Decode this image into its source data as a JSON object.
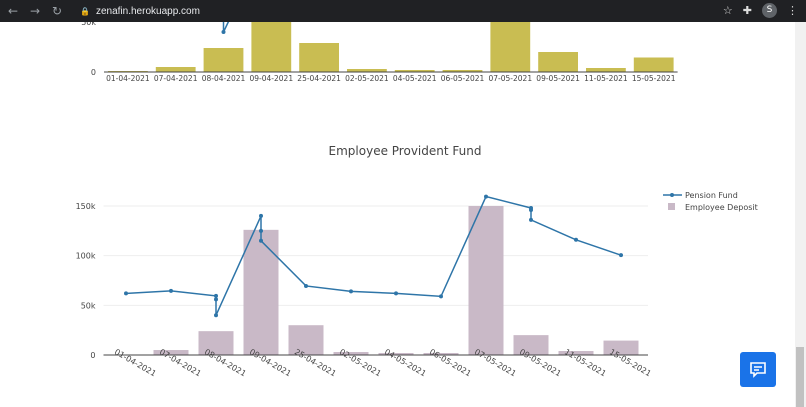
{
  "browser": {
    "url": "zenafin.herokuapp.com",
    "profile": "S"
  },
  "chart_data": [
    {
      "type": "bar+line",
      "title": "",
      "categories": [
        "01-04-2021",
        "07-04-2021",
        "08-04-2021",
        "09-04-2021",
        "25-04-2021",
        "02-05-2021",
        "04-05-2021",
        "06-05-2021",
        "07-05-2021",
        "09-05-2021",
        "11-05-2021",
        "15-05-2021"
      ],
      "bar_values": [
        1000,
        5000,
        24000,
        126000,
        29000,
        3000,
        2000,
        2000,
        150000,
        20000,
        4000,
        14500
      ],
      "yticks": [
        {
          "v": 0,
          "label": "0"
        },
        {
          "v": 50000,
          "label": "50k"
        }
      ],
      "bar_color": "#c9bd52"
    },
    {
      "type": "bar+line",
      "title": "Employee Provident Fund",
      "categories": [
        "01-04-2021",
        "07-04-2021",
        "08-04-2021",
        "09-04-2021",
        "25-04-2021",
        "02-05-2021",
        "04-05-2021",
        "06-05-2021",
        "07-05-2021",
        "09-05-2021",
        "11-05-2021",
        "15-05-2021"
      ],
      "series": [
        {
          "name": "Pension Fund",
          "type": "line",
          "color": "#2e75a8",
          "points": [
            [
              0,
              62000
            ],
            [
              1,
              64500
            ],
            [
              2,
              59500
            ],
            [
              2,
              56000
            ],
            [
              2,
              40000
            ],
            [
              3,
              140000
            ],
            [
              3,
              125000
            ],
            [
              3,
              115000
            ],
            [
              4,
              69500
            ],
            [
              5,
              64000
            ],
            [
              6,
              62000
            ],
            [
              7,
              59000
            ],
            [
              8,
              159500
            ],
            [
              9,
              148000
            ],
            [
              9,
              146000
            ],
            [
              9,
              136000
            ],
            [
              10,
              116000
            ],
            [
              11,
              100500
            ]
          ]
        },
        {
          "name": "Employee Deposit",
          "type": "bar",
          "color": "#c9b9c7",
          "values": [
            500,
            5000,
            24000,
            126000,
            30000,
            3000,
            2000,
            2000,
            150000,
            20000,
            4000,
            14500
          ]
        }
      ],
      "yticks": [
        {
          "v": 0,
          "label": "0"
        },
        {
          "v": 50000,
          "label": "50k"
        },
        {
          "v": 100000,
          "label": "100k"
        },
        {
          "v": 150000,
          "label": "150k"
        }
      ],
      "legend": "top-right",
      "grid": true
    }
  ]
}
